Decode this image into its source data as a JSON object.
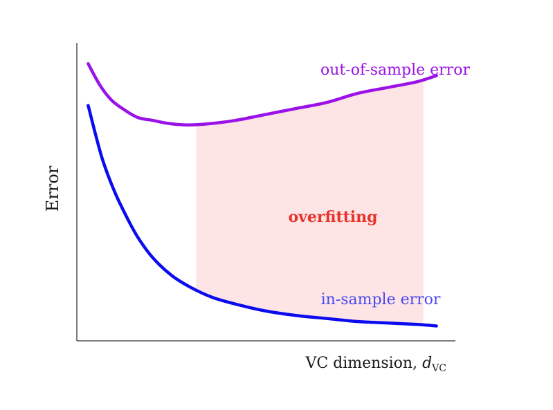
{
  "chart_data": {
    "type": "line",
    "title": "",
    "xlabel_main": "VC dimension, ",
    "xlabel_var": "d",
    "xlabel_sub": "VC",
    "ylabel": "Error",
    "xlim": [
      0,
      1
    ],
    "ylim": [
      0,
      1
    ],
    "grid": false,
    "series": [
      {
        "name": "out-of-sample error",
        "color": "#9b12e8",
        "x": [
          0.03,
          0.06,
          0.09,
          0.12,
          0.16,
          0.2,
          0.24,
          0.28,
          0.31,
          0.36,
          0.42,
          0.5,
          0.58,
          0.66,
          0.74,
          0.82,
          0.9,
          0.95
        ],
        "y": [
          0.93,
          0.86,
          0.81,
          0.78,
          0.75,
          0.74,
          0.73,
          0.725,
          0.725,
          0.73,
          0.74,
          0.76,
          0.78,
          0.8,
          0.83,
          0.85,
          0.87,
          0.89
        ]
      },
      {
        "name": "in-sample error",
        "color": "#0b0bf0",
        "x": [
          0.03,
          0.05,
          0.07,
          0.1,
          0.13,
          0.16,
          0.2,
          0.25,
          0.3,
          0.36,
          0.43,
          0.5,
          0.58,
          0.66,
          0.74,
          0.82,
          0.9,
          0.95
        ],
        "y": [
          0.79,
          0.69,
          0.6,
          0.5,
          0.42,
          0.35,
          0.28,
          0.22,
          0.18,
          0.145,
          0.12,
          0.1,
          0.085,
          0.075,
          0.065,
          0.06,
          0.055,
          0.05
        ]
      }
    ],
    "shaded_region": {
      "label": "overfitting",
      "label_color": "#e8332d",
      "fill_color": "#fde4e5",
      "x_range": [
        0.315,
        0.915
      ]
    }
  }
}
